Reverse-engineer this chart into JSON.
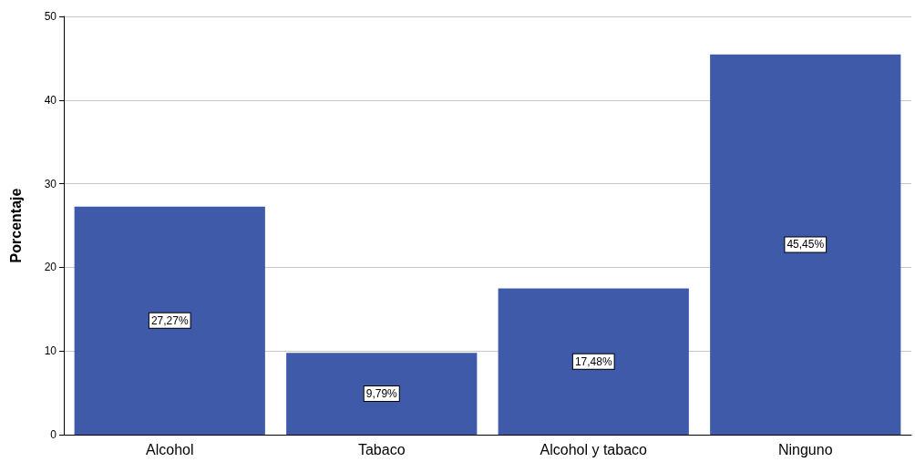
{
  "chart_data": {
    "type": "bar",
    "ylabel": "Porcentaje",
    "categories": [
      "Alcohol",
      "Tabaco",
      "Alcohol y tabaco",
      "Ninguno"
    ],
    "values": [
      27.27,
      9.79,
      17.48,
      45.45
    ],
    "value_labels": [
      "27,27%",
      "9,79%",
      "17,48%",
      "45,45%"
    ],
    "color": "#3e5aa8",
    "ylim": [
      0,
      50
    ],
    "yticks": [
      0,
      10,
      20,
      30,
      40,
      50
    ],
    "grid": "y"
  }
}
